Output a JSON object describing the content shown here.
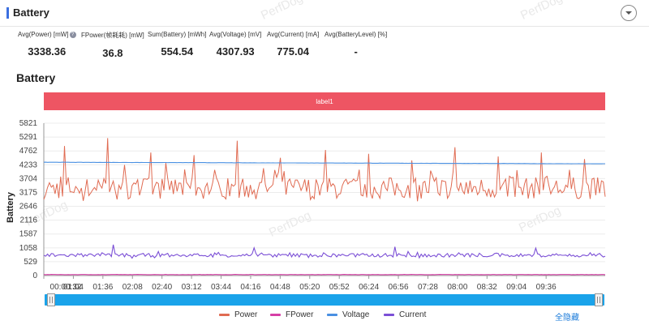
{
  "header": {
    "title": "Battery"
  },
  "watermark": "PerfDog",
  "stats": [
    {
      "label": "Avg(Power) [mW]",
      "value": "3338.36",
      "info": true
    },
    {
      "label": "FPower(帧耗耗) [mW]",
      "value": "36.8"
    },
    {
      "label": "Sum(Battery) [mWh]",
      "value": "554.54"
    },
    {
      "label": "Avg(Voltage) [mV]",
      "value": "4307.93"
    },
    {
      "label": "Avg(Current) [mA]",
      "value": "775.04"
    },
    {
      "label": "Avg(BatteryLevel) [%]",
      "value": "-"
    }
  ],
  "section_title": "Battery",
  "label_band": "label1",
  "hide_all": "全隐藏",
  "chart_data": {
    "type": "line",
    "ylabel": "Battery",
    "ylim": [
      0,
      5821
    ],
    "yticks": [
      0,
      529,
      1058,
      1587,
      2116,
      2646,
      3175,
      3704,
      4233,
      4762,
      5291,
      5821
    ],
    "xticks": [
      "00:00:32",
      "01:04",
      "01:36",
      "02:08",
      "02:40",
      "03:12",
      "03:44",
      "04:16",
      "04:48",
      "05:20",
      "05:52",
      "06:24",
      "06:56",
      "07:28",
      "08:00",
      "08:32",
      "09:04",
      "09:36"
    ],
    "xrange_seconds": [
      32,
      640
    ],
    "grid": true,
    "legend_position": "bottom",
    "series": [
      {
        "name": "Power",
        "color": "#e06b52",
        "mean": 3338,
        "spread": 420,
        "spikes": [
          4950,
          5250,
          4700,
          4600,
          5150,
          4500,
          4800,
          4650,
          4400,
          4900,
          4550,
          4700,
          4450
        ]
      },
      {
        "name": "FPower",
        "color": "#d63fa6",
        "mean": 37,
        "spread": 4,
        "spikes": []
      },
      {
        "name": "Voltage",
        "color": "#4a90e2",
        "start": 4330,
        "end": 4270,
        "spread": 6,
        "spikes": []
      },
      {
        "name": "Current",
        "color": "#7b4fd6",
        "mean": 775,
        "spread": 70,
        "spikes": [
          1180,
          1060,
          1100,
          1050
        ]
      }
    ]
  }
}
